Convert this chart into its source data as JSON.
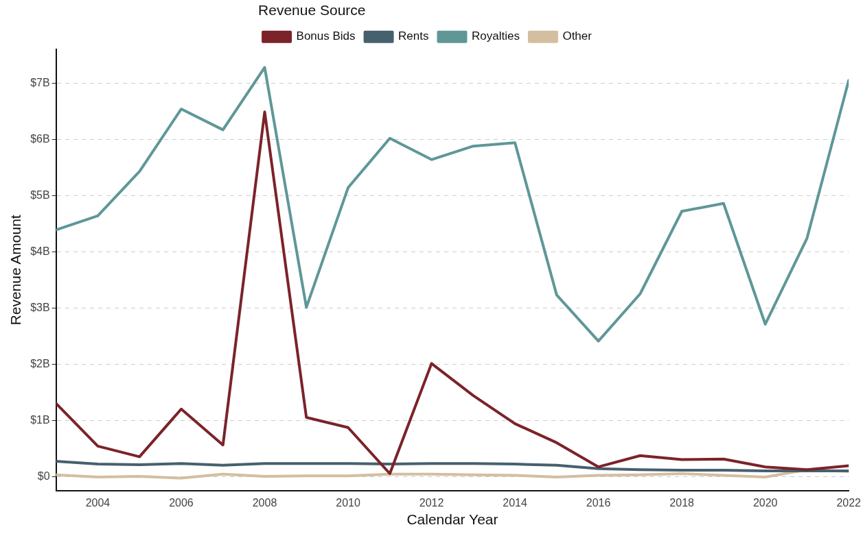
{
  "chart_data": {
    "type": "line",
    "xlabel": "Calendar Year",
    "ylabel": "Revenue Amount",
    "legend_title": "Revenue Source",
    "legend": "top",
    "grid": "y",
    "marker": "none",
    "line_style": "solid",
    "x": [
      2003,
      2004,
      2005,
      2006,
      2007,
      2008,
      2009,
      2010,
      2011,
      2012,
      2013,
      2014,
      2015,
      2016,
      2017,
      2018,
      2019,
      2020,
      2021,
      2022
    ],
    "xlim": [
      2003,
      2022
    ],
    "xticks": [
      2004,
      2006,
      2008,
      2010,
      2012,
      2014,
      2016,
      2018,
      2020,
      2022
    ],
    "ylim": [
      -0.25,
      7.6
    ],
    "yticks": [
      {
        "value": 0,
        "label": "$0"
      },
      {
        "value": 1,
        "label": "$1B"
      },
      {
        "value": 2,
        "label": "$2B"
      },
      {
        "value": 3,
        "label": "$3B"
      },
      {
        "value": 4,
        "label": "$4B"
      },
      {
        "value": 5,
        "label": "$5B"
      },
      {
        "value": 6,
        "label": "$6B"
      },
      {
        "value": 7,
        "label": "$7B"
      }
    ],
    "series": [
      {
        "name": "Bonus Bids",
        "color": "#7b2329",
        "values": [
          1.3,
          0.54,
          0.35,
          1.2,
          0.56,
          6.49,
          1.05,
          0.87,
          0.05,
          2.01,
          1.44,
          0.94,
          0.6,
          0.17,
          0.37,
          0.3,
          0.31,
          0.17,
          0.12,
          0.19
        ]
      },
      {
        "name": "Rents",
        "color": "#47606e",
        "values": [
          0.27,
          0.22,
          0.21,
          0.23,
          0.2,
          0.23,
          0.23,
          0.23,
          0.22,
          0.23,
          0.23,
          0.22,
          0.2,
          0.14,
          0.12,
          0.11,
          0.11,
          0.1,
          0.1,
          0.1
        ]
      },
      {
        "name": "Royalties",
        "color": "#5f9797",
        "values": [
          4.39,
          4.64,
          5.43,
          6.54,
          6.17,
          7.28,
          3.01,
          5.14,
          6.02,
          5.64,
          5.88,
          5.94,
          3.23,
          2.41,
          3.25,
          4.72,
          4.86,
          2.71,
          4.24,
          7.05
        ]
      },
      {
        "name": "Other",
        "color": "#d4bea0",
        "values": [
          0.03,
          -0.01,
          0,
          -0.03,
          0.04,
          0,
          0.01,
          0.01,
          0.04,
          0.04,
          0.03,
          0.02,
          -0.01,
          0.02,
          0.03,
          0.05,
          0.02,
          -0.01,
          0.12,
          0.09
        ]
      }
    ]
  }
}
